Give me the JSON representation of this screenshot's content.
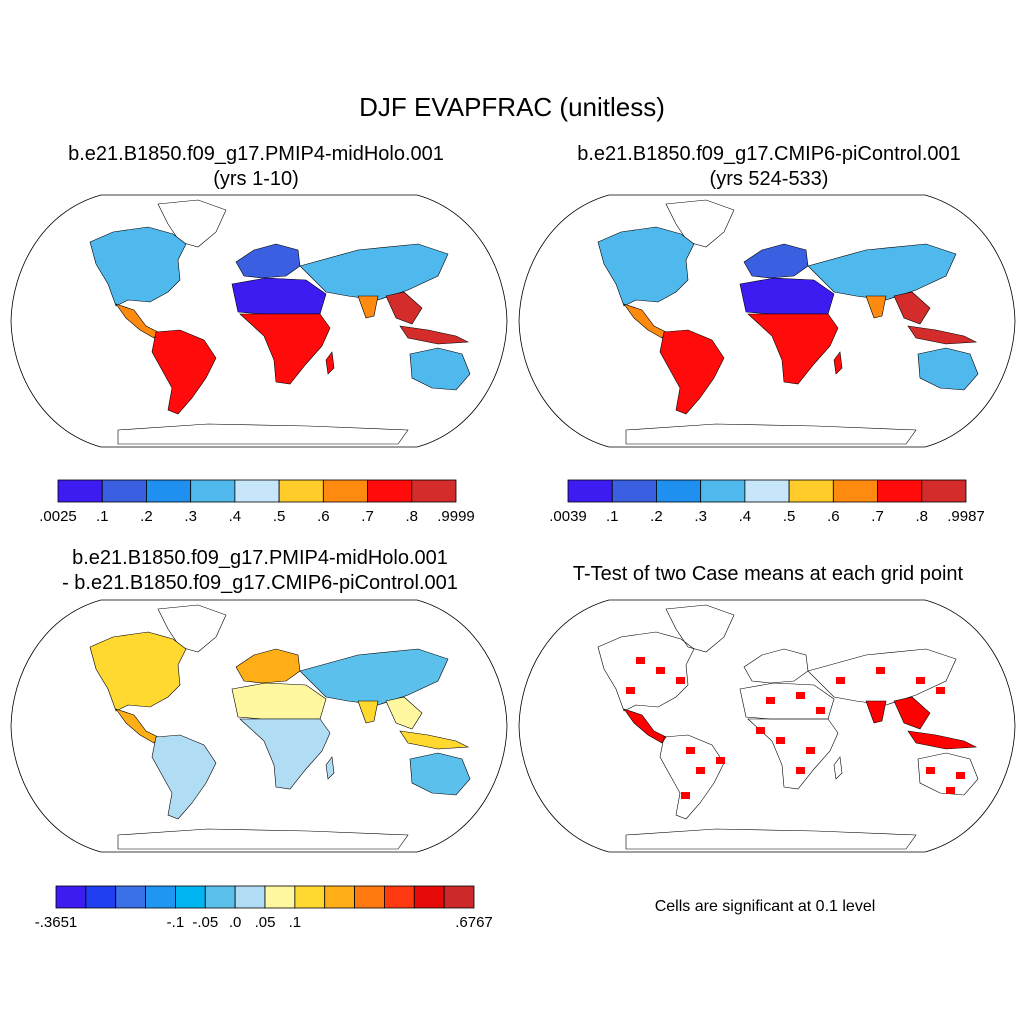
{
  "main_title": "DJF EVAPFRAC (unitless)",
  "panels": [
    {
      "id": "midholo",
      "title_line1": "b.e21.B1850.f09_g17.PMIP4-midHolo.001",
      "title_line2": "(yrs 1-10)",
      "colorbar": {
        "colors": [
          "#3d1cf2",
          "#3a5fe0",
          "#1f8ff0",
          "#4fb8ec",
          "#c8e6fa",
          "#ffcc2a",
          "#ff8a10",
          "#ff0b0b",
          "#d42b2b"
        ],
        "labels": [
          ".0025",
          ".1",
          ".2",
          ".3",
          ".4",
          ".5",
          ".6",
          ".7",
          ".8",
          ".9999"
        ]
      }
    },
    {
      "id": "picontrol",
      "title_line1": "b.e21.B1850.f09_g17.CMIP6-piControl.001",
      "title_line2": "(yrs 524-533)",
      "colorbar": {
        "colors": [
          "#3d1cf2",
          "#3a5fe0",
          "#1f8ff0",
          "#4fb8ec",
          "#c8e6fa",
          "#ffcc2a",
          "#ff8a10",
          "#ff0b0b",
          "#d42b2b"
        ],
        "labels": [
          ".0039",
          ".1",
          ".2",
          ".3",
          ".4",
          ".5",
          ".6",
          ".7",
          ".8",
          ".9987"
        ]
      }
    },
    {
      "id": "difference",
      "title_line1": "b.e21.B1850.f09_g17.PMIP4-midHolo.001",
      "title_line2": "- b.e21.B1850.f09_g17.CMIP6-piControl.001",
      "colorbar": {
        "colors": [
          "#3d1cf2",
          "#1f3ff0",
          "#3a70e8",
          "#1e96f2",
          "#00b4f0",
          "#5cc0ec",
          "#b0dcf4",
          "#fff8a0",
          "#ffd830",
          "#ffae18",
          "#ff7a10",
          "#ff3a10",
          "#e60a0a",
          "#cc2a2a"
        ],
        "labels": [
          "-.3651",
          "",
          "-.1",
          "-.05",
          ".0",
          ".05",
          ".1",
          "",
          ".6767"
        ]
      }
    },
    {
      "id": "ttest",
      "title_line1": "T-Test of two Case means at each grid point",
      "note": "Cells are significant at 0.1 level",
      "sig_color": "#ff0000"
    }
  ]
}
